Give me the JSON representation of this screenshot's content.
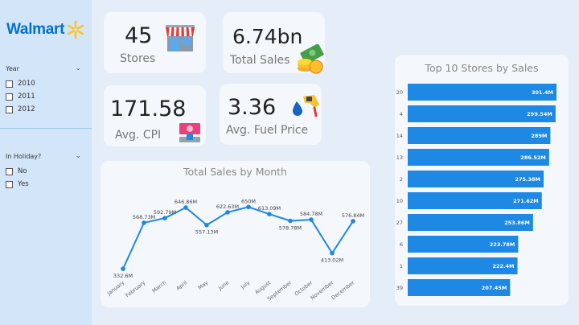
{
  "logo": {
    "text": "Walmart",
    "accent": "#ffc220",
    "color": "#0071ce"
  },
  "filters": {
    "year": {
      "title": "Year",
      "options": [
        "2010",
        "2011",
        "2012"
      ]
    },
    "holiday": {
      "title": "In Holiday?",
      "options": [
        "No",
        "Yes"
      ]
    }
  },
  "kpis": {
    "stores": {
      "value": "45",
      "label": "Stores",
      "icon": "store-icon"
    },
    "sales": {
      "value": "6.74bn",
      "label": "Total Sales",
      "icon": "money-icon"
    },
    "cpi": {
      "value": "171.58",
      "label": "Avg. CPI",
      "icon": "cash-icon"
    },
    "fuel": {
      "value": "3.36",
      "label": "Avg. Fuel Price",
      "icon": "fuel-pump-icon"
    }
  },
  "chart_data": [
    {
      "type": "line",
      "title": "Total Sales by Month",
      "categories": [
        "January",
        "February",
        "March",
        "April",
        "May",
        "June",
        "July",
        "August",
        "September",
        "October",
        "November",
        "December"
      ],
      "values": [
        332.6,
        568.73,
        592.79,
        646.86,
        557.13,
        622.63,
        650,
        613.09,
        578.78,
        584.78,
        413.02,
        576.84
      ],
      "data_labels": [
        "332.6M",
        "568.73M",
        "592.79M",
        "646.86M",
        "557.13M",
        "622.63M",
        "650M",
        "613.09M",
        "578.78M",
        "584.78M",
        "413.02M",
        "576.84M"
      ],
      "ylim": [
        300,
        680
      ],
      "color": "#1e88e5",
      "grid": false
    },
    {
      "type": "bar",
      "orientation": "horizontal",
      "title": "Top 10 Stores by Sales",
      "categories": [
        "20",
        "4",
        "14",
        "13",
        "2",
        "10",
        "27",
        "6",
        "1",
        "39"
      ],
      "values": [
        301.4,
        299.54,
        289,
        286.52,
        275.38,
        271.62,
        253.86,
        223.78,
        222.4,
        207.45
      ],
      "data_labels": [
        "301.4M",
        "299.54M",
        "289M",
        "286.52M",
        "275.38M",
        "271.62M",
        "253.86M",
        "223.78M",
        "222.4M",
        "207.45M"
      ],
      "xlim": [
        0,
        301.4
      ],
      "color": "#1e88e5",
      "grid": false
    }
  ]
}
